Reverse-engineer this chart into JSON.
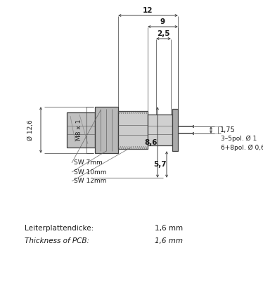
{
  "bg_color": "#ffffff",
  "line_color": "#404040",
  "text_color": "#1a1a1a",
  "figsize": [
    3.74,
    4.0
  ],
  "dpi": 100,
  "annotations": {
    "dim_12": "12",
    "dim_9": "9",
    "dim_25": "2,5",
    "dim_M8x1": "M8 x 1",
    "dim_D126": "Ø 12,6",
    "dim_SW7": "SW 7mm",
    "dim_SW10": "SW 10mm",
    "dim_SW12": "SW 12mm",
    "dim_57": "5,7",
    "dim_175": "1,75",
    "dim_86": "8,6",
    "dim_3_5pol": "3–5pol. Ø 1",
    "dim_68pol": "6+8pol. Ø 0,6",
    "text1": "Leiterplattendicke:",
    "text1v": "1,6 mm",
    "text2": "Thickness of PCB:",
    "text2v": "1,6 mm"
  }
}
